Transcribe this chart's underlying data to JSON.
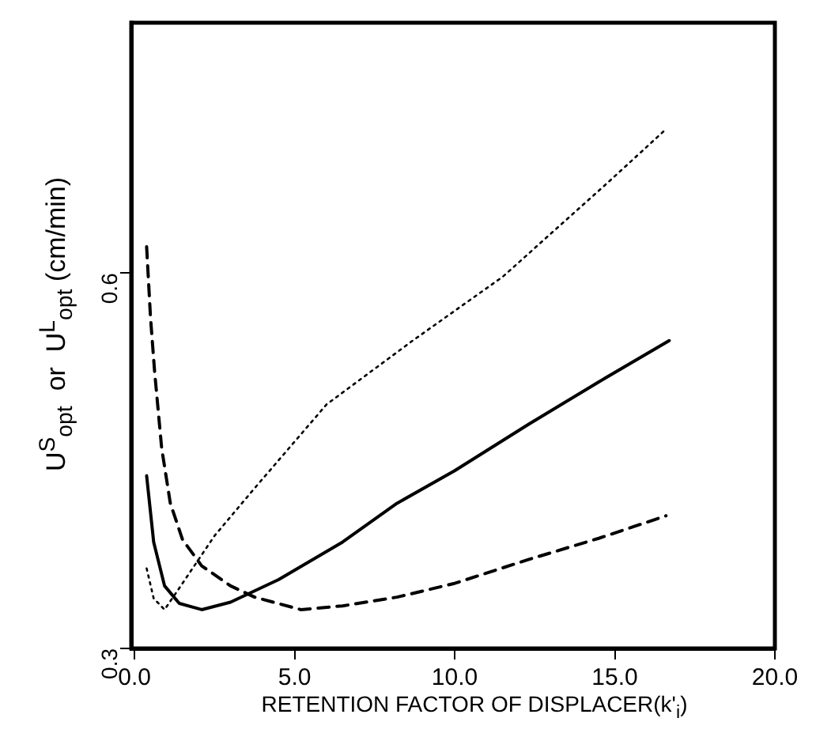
{
  "chart_data": {
    "type": "line",
    "xlabel": "RETENTION FACTOR OF DISPLACER(k'$_{i}$)",
    "ylabel": "U$^{S}$$_{opt}$  or  U$^{L}$$_{opt}$ (cm/min)",
    "xlim": [
      -0.1,
      20
    ],
    "xticks": [
      {
        "value": 0,
        "label": "0.0"
      },
      {
        "value": 5,
        "label": "5.0"
      },
      {
        "value": 10,
        "label": "10.0"
      },
      {
        "value": 15,
        "label": "15.0"
      },
      {
        "value": 20,
        "label": "20.0"
      }
    ],
    "ylim": [
      0.3,
      0.8
    ],
    "yticks": [
      0.3,
      0.6
    ],
    "grid": false,
    "legend": false,
    "marker": "none",
    "series": [
      {
        "color": "#000000",
        "line_style": "solid",
        "x": [
          0.38,
          0.6,
          0.94,
          1.4,
          2.1,
          3.0,
          4.5,
          6.5,
          8.2,
          10.0,
          12.3,
          14.5,
          16.7
        ],
        "values": [
          0.438,
          0.385,
          0.35,
          0.336,
          0.331,
          0.337,
          0.355,
          0.385,
          0.416,
          0.442,
          0.479,
          0.513,
          0.546
        ]
      },
      {
        "color": "#000000",
        "line_style": "dashed",
        "x": [
          0.38,
          0.5,
          0.63,
          0.85,
          1.12,
          1.5,
          2.1,
          3.0,
          3.75,
          5.2,
          6.5,
          8.2,
          10.0,
          12.3,
          14.5,
          16.6
        ],
        "values": [
          0.621,
          0.565,
          0.521,
          0.46,
          0.416,
          0.387,
          0.366,
          0.35,
          0.341,
          0.331,
          0.334,
          0.341,
          0.352,
          0.371,
          0.388,
          0.406
        ]
      },
      {
        "color": "#000000",
        "line_style": "dotted",
        "x": [
          0.38,
          0.6,
          0.94,
          1.5,
          2.5,
          3.75,
          6.0,
          8.69,
          11.5,
          14.77,
          16.6
        ],
        "values": [
          0.364,
          0.34,
          0.331,
          0.352,
          0.39,
          0.428,
          0.495,
          0.546,
          0.597,
          0.672,
          0.715
        ]
      }
    ]
  }
}
